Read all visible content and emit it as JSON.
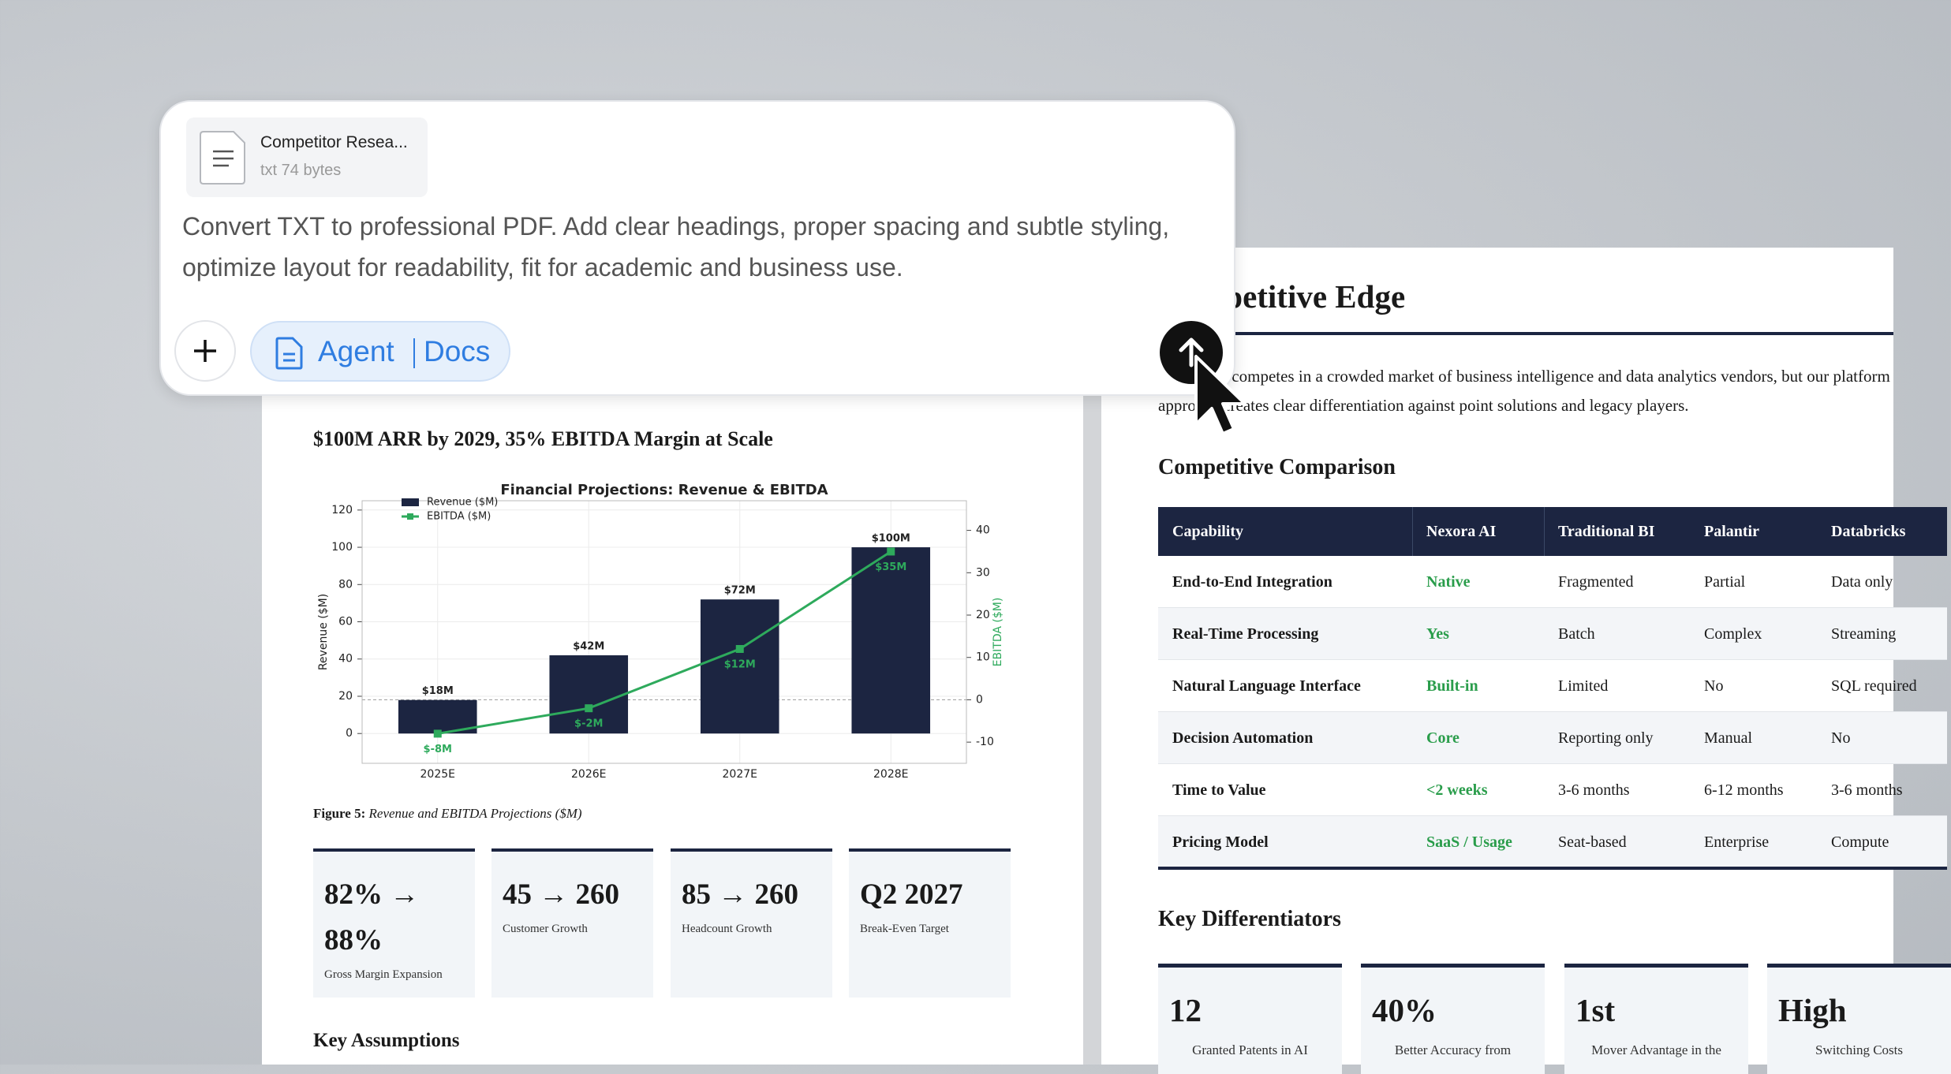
{
  "prompt": {
    "file": {
      "name": "Competitor Resea...",
      "meta": "txt 74 bytes"
    },
    "text": "Convert TXT to professional PDF. Add clear headings, proper spacing and subtle styling, optimize layout for readability, fit for academic and business use.",
    "agent": "Agent",
    "mode": "Docs"
  },
  "left_doc": {
    "heading": "$100M ARR by 2029, 35% EBITDA Margin at Scale",
    "chart_data": {
      "type": "bar",
      "title": "Financial Projections: Revenue & EBITDA",
      "categories": [
        "2025E",
        "2026E",
        "2027E",
        "2028E"
      ],
      "series": [
        {
          "name": "Revenue ($M)",
          "color": "#1c2541",
          "values": [
            18,
            42,
            72,
            100
          ],
          "value_labels": [
            "$18M",
            "$42M",
            "$72M",
            "$100M"
          ]
        },
        {
          "name": "EBITDA ($M)",
          "type": "line",
          "axis": "y2",
          "color": "#2eaa5c",
          "values": [
            -8,
            -2,
            12,
            35
          ],
          "value_labels": [
            "$-8M",
            "$-2M",
            "$12M",
            "$35M"
          ]
        }
      ],
      "ylabel": "Revenue ($M)",
      "y2label": "EBITDA ($M)",
      "ylim": [
        -16,
        125
      ],
      "yticks": [
        0,
        20,
        40,
        60,
        80,
        100,
        120
      ],
      "y2lim": [
        -15,
        47
      ],
      "y2ticks": [
        -10,
        0,
        10,
        20,
        30,
        40
      ],
      "grid": true,
      "legend": "upper left"
    },
    "caption": {
      "label": "Figure 5:",
      "text": "Revenue and EBITDA Projections ($M)"
    },
    "kpis": [
      {
        "value": "82% → 88%",
        "label": "Gross Margin Expansion"
      },
      {
        "value": "45 → 260",
        "label": "Customer Growth"
      },
      {
        "value": "85 → 260",
        "label": "Headcount Growth"
      },
      {
        "value": "Q2 2027",
        "label": "Break-Even Target"
      }
    ],
    "next_heading": "Key Assumptions"
  },
  "right_doc": {
    "heading": "Competitive Edge",
    "intro": "Nexora AI competes in a crowded market of business intelligence and data analytics vendors, but our platform approach creates clear differentiation against point solutions and legacy players.",
    "table_title": "Competitive Comparison",
    "table": {
      "header": [
        "Capability",
        "Nexora AI",
        "Traditional BI",
        "Palantir",
        "Databricks"
      ],
      "rows": [
        [
          "End-to-End Integration",
          "Native",
          "Fragmented",
          "Partial",
          "Data only"
        ],
        [
          "Real-Time Processing",
          "Yes",
          "Batch",
          "Complex",
          "Streaming"
        ],
        [
          "Natural Language Interface",
          "Built-in",
          "Limited",
          "No",
          "SQL required"
        ],
        [
          "Decision Automation",
          "Core",
          "Reporting only",
          "Manual",
          "No"
        ],
        [
          "Time to Value",
          "<2 weeks",
          "3-6 months",
          "6-12 months",
          "3-6 months"
        ],
        [
          "Pricing Model",
          "SaaS / Usage",
          "Seat-based",
          "Enterprise",
          "Compute"
        ]
      ]
    },
    "diff_title": "Key Differentiators",
    "cards": [
      {
        "value": "12",
        "label": "Granted Patents in AI"
      },
      {
        "value": "40%",
        "label": "Better Accuracy from"
      },
      {
        "value": "1st",
        "label": "Mover Advantage in the"
      },
      {
        "value": "High",
        "label": "Switching Costs"
      }
    ]
  }
}
